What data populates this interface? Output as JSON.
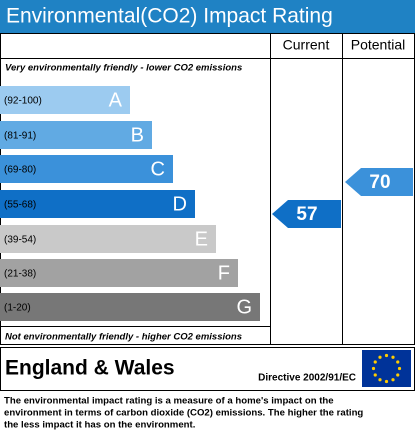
{
  "header": {
    "title": "Environmental(CO2) Impact Rating"
  },
  "columns": {
    "current": "Current",
    "potential": "Potential"
  },
  "top_note": "Very environmentally friendly - lower CO2 emissions",
  "bottom_note": "Not environmentally friendly - higher CO2 emissions",
  "bands": [
    {
      "range": "(92-100)",
      "letter": "A",
      "color": "#9ccbf0"
    },
    {
      "range": "(81-91)",
      "letter": "B",
      "color": "#61aae3"
    },
    {
      "range": "(69-80)",
      "letter": "C",
      "color": "#3b91da"
    },
    {
      "range": "(55-68)",
      "letter": "D",
      "color": "#0f6fc6"
    },
    {
      "range": "(39-54)",
      "letter": "E",
      "color": "#c9c9c9"
    },
    {
      "range": "(21-38)",
      "letter": "F",
      "color": "#a2a2a2"
    },
    {
      "range": "(1-20)",
      "letter": "G",
      "color": "#777777"
    }
  ],
  "current": {
    "value": 57,
    "color": "#0f6fc6"
  },
  "potential": {
    "value": 70,
    "color": "#3b91da"
  },
  "footer": {
    "region": "England & Wales",
    "directive": "Directive 2002/91/EC"
  },
  "description": [
    "The environmental impact rating is a measure of a home's impact on the",
    "environment in terms of carbon dioxide (CO2) emissions. The higher the rating",
    "the less impact it has on the environment."
  ]
}
